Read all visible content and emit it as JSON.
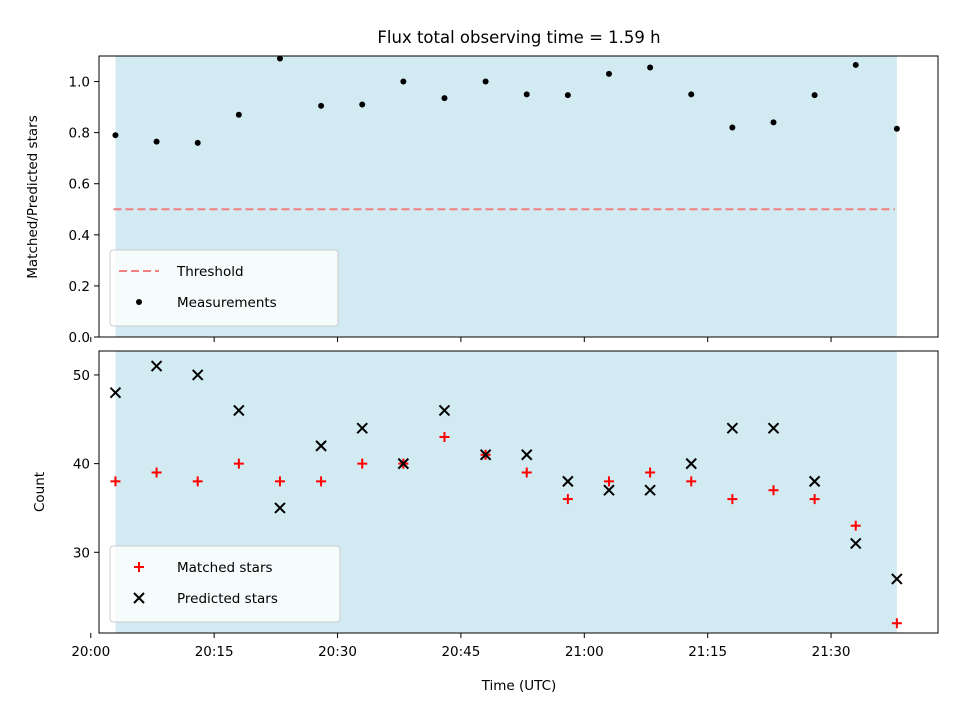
{
  "chart_data": [
    {
      "type": "scatter",
      "title": "Flux total observing time = 1.59 h",
      "xlabel": "",
      "ylabel": "Matched/Predicted stars",
      "ylim": [
        0,
        1.1
      ],
      "yticks": [
        "0.0",
        "0.2",
        "0.4",
        "0.6",
        "0.8",
        "1.0"
      ],
      "xlim": [
        "20:01",
        "21:43"
      ],
      "shaded_span": [
        "20:03",
        "21:38"
      ],
      "shade_color": "#add8e6",
      "legend_position": "lower-left",
      "threshold": {
        "name": "Threshold",
        "value": 0.5,
        "color": "#f08080",
        "style": "dashed"
      },
      "series": [
        {
          "name": "Measurements",
          "marker": "dot",
          "color": "#000000",
          "x": [
            "20:03",
            "20:08",
            "20:13",
            "20:18",
            "20:23",
            "20:28",
            "20:33",
            "20:38",
            "20:43",
            "20:48",
            "20:53",
            "20:58",
            "21:03",
            "21:08",
            "21:13",
            "21:18",
            "21:23",
            "21:28",
            "21:33",
            "21:38"
          ],
          "values": [
            0.79,
            0.765,
            0.76,
            0.87,
            1.09,
            0.905,
            0.91,
            1.0,
            0.935,
            1.0,
            0.95,
            0.947,
            1.03,
            1.055,
            0.95,
            0.82,
            0.84,
            0.947,
            1.065,
            0.815
          ]
        }
      ]
    },
    {
      "type": "scatter",
      "xlabel": "Time (UTC)",
      "ylabel": "Count",
      "ylim": [
        20.9,
        52.7
      ],
      "yticks": [
        "30",
        "40",
        "50"
      ],
      "xticks": [
        "20:00",
        "20:15",
        "20:30",
        "20:45",
        "21:00",
        "21:15",
        "21:30"
      ],
      "xlim": [
        "20:01",
        "21:43"
      ],
      "shaded_span": [
        "20:03",
        "21:38"
      ],
      "shade_color": "#add8e6",
      "legend_position": "lower-left",
      "series": [
        {
          "name": "Matched stars",
          "marker": "plus",
          "color": "#ff0000",
          "x": [
            "20:03",
            "20:08",
            "20:13",
            "20:18",
            "20:23",
            "20:28",
            "20:33",
            "20:38",
            "20:43",
            "20:48",
            "20:53",
            "20:58",
            "21:03",
            "21:08",
            "21:13",
            "21:18",
            "21:23",
            "21:28",
            "21:33",
            "21:38"
          ],
          "values": [
            38,
            39,
            38,
            40,
            38,
            38,
            40,
            40,
            43,
            41,
            39,
            36,
            38,
            39,
            38,
            36,
            37,
            36,
            33,
            22
          ]
        },
        {
          "name": "Predicted stars",
          "marker": "x",
          "color": "#000000",
          "x": [
            "20:03",
            "20:08",
            "20:13",
            "20:18",
            "20:23",
            "20:28",
            "20:33",
            "20:38",
            "20:43",
            "20:48",
            "20:53",
            "20:58",
            "21:03",
            "21:08",
            "21:13",
            "21:18",
            "21:23",
            "21:28",
            "21:33",
            "21:38"
          ],
          "values": [
            48,
            51,
            50,
            46,
            35,
            42,
            44,
            40,
            46,
            41,
            41,
            38,
            37,
            37,
            40,
            44,
            44,
            38,
            31,
            27
          ]
        }
      ]
    }
  ]
}
